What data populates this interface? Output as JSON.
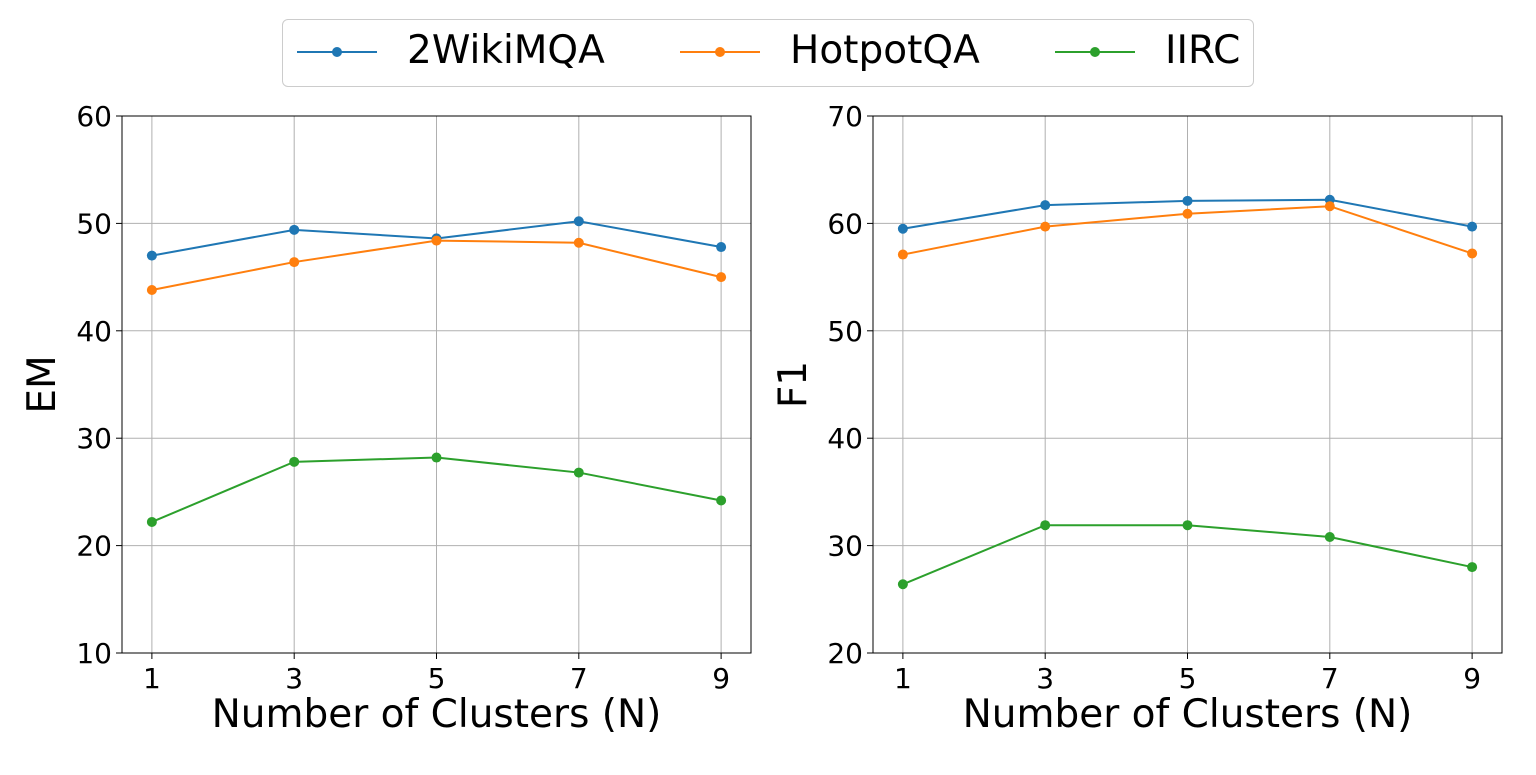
{
  "legend": {
    "items": [
      {
        "name": "2WikiMQA",
        "color": "#1f77b4"
      },
      {
        "name": "HotpotQA",
        "color": "#ff7f0e"
      },
      {
        "name": "IIRC",
        "color": "#2ca02c"
      }
    ]
  },
  "chart_data": [
    {
      "type": "line",
      "title": "",
      "xlabel": "Number of Clusters (N)",
      "ylabel": "EM",
      "x": [
        1,
        3,
        5,
        7,
        9
      ],
      "xticks": [
        1,
        3,
        5,
        7,
        9
      ],
      "yticks": [
        10,
        20,
        30,
        40,
        50,
        60
      ],
      "ylim": [
        10,
        60
      ],
      "grid": true,
      "series": [
        {
          "name": "2WikiMQA",
          "color": "#1f77b4",
          "values": [
            47.0,
            49.4,
            48.6,
            50.2,
            47.8
          ]
        },
        {
          "name": "HotpotQA",
          "color": "#ff7f0e",
          "values": [
            43.8,
            46.4,
            48.4,
            48.2,
            45.0
          ]
        },
        {
          "name": "IIRC",
          "color": "#2ca02c",
          "values": [
            22.2,
            27.8,
            28.2,
            26.8,
            24.2
          ]
        }
      ]
    },
    {
      "type": "line",
      "title": "",
      "xlabel": "Number of Clusters (N)",
      "ylabel": "F1",
      "x": [
        1,
        3,
        5,
        7,
        9
      ],
      "xticks": [
        1,
        3,
        5,
        7,
        9
      ],
      "yticks": [
        20,
        30,
        40,
        50,
        60,
        70
      ],
      "ylim": [
        20,
        70
      ],
      "grid": true,
      "series": [
        {
          "name": "2WikiMQA",
          "color": "#1f77b4",
          "values": [
            59.5,
            61.7,
            62.1,
            62.2,
            59.7
          ]
        },
        {
          "name": "HotpotQA",
          "color": "#ff7f0e",
          "values": [
            57.1,
            59.7,
            60.9,
            61.6,
            57.2
          ]
        },
        {
          "name": "IIRC",
          "color": "#2ca02c",
          "values": [
            26.4,
            31.9,
            31.9,
            30.8,
            28.0
          ]
        }
      ]
    }
  ]
}
